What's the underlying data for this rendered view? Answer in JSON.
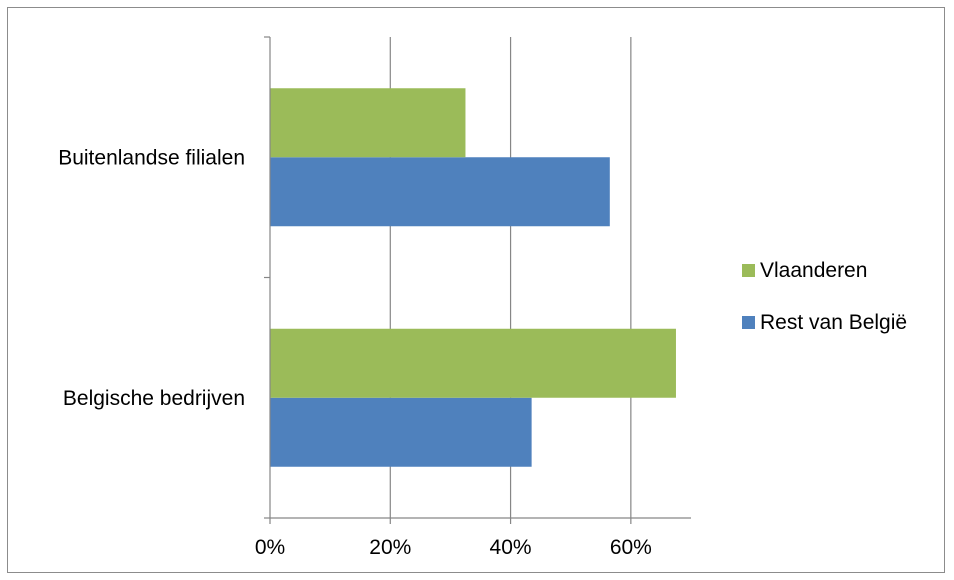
{
  "chart_data": {
    "type": "bar",
    "orientation": "horizontal",
    "categories": [
      "Belgische bedrijven",
      "Buitenlandse filialen"
    ],
    "series": [
      {
        "name": "Rest van België",
        "values": [
          43.5,
          56.5
        ],
        "color": "#4f81bd"
      },
      {
        "name": "Vlaanderen",
        "values": [
          67.5,
          32.5
        ],
        "color": "#9bbb59"
      }
    ],
    "x_ticks": [
      "0%",
      "20%",
      "40%",
      "60%"
    ],
    "x_tick_values": [
      0,
      20,
      40,
      60
    ],
    "xlim": [
      0,
      70
    ],
    "grid": "vertical",
    "legend": "right",
    "xlabel": "",
    "ylabel": "",
    "title": ""
  }
}
